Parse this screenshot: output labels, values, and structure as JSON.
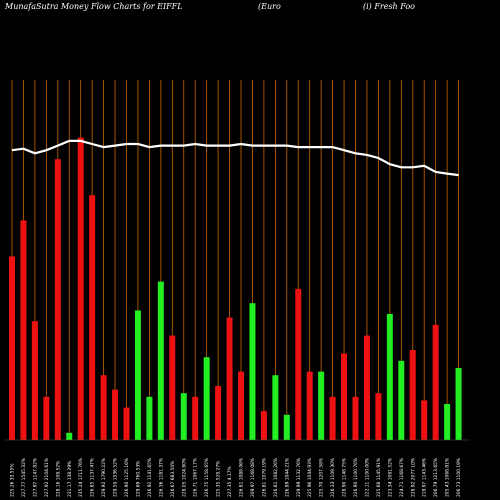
{
  "header": {
    "brand": "MunafaSutra  Money Flow  Charts for EIFFL",
    "company_part1": "(Euro",
    "company_part2": "(i) Fresh Foo"
  },
  "chart_data": {
    "type": "bar",
    "title": "MunafaSutra  Money Flow  Charts for EIFFL",
    "categories": [
      "225.26 33.55%",
      "227.77 1545.32%",
      "227.97 1147.82%",
      "227.92 2104.61%",
      "228.16 108.52%",
      "231.17 138.29%",
      "235.24 1711.76%",
      "226.85 1137.47%",
      "229.92 1790.22%",
      "229.50 1536.52%",
      "226.90 1125.16%",
      "229.69 760.53%",
      "226.92 1141.65%",
      "226.36 1181.37%",
      "226.67 683.50%",
      "228.05 1024.80%",
      "226.71 1067.17%",
      "226.75 1158.65%",
      "225.35 528.27%",
      "227.35 4.17%",
      "226.81 1088.06%",
      "209.97 1168.08%",
      "226.81 1079.19%",
      "226.81 1082.26%",
      "226.89 1044.21%",
      "229.99 1132.76%",
      "225.96 1044.93%",
      "225.70 1207.58%",
      "226.33 1109.30%",
      "228.90 1148.75%",
      "226.90 1100.76%",
      "222.11 1100.00%",
      "225.68 1145.91%",
      "223.34 1081.52%",
      "224.71 1168.67%",
      "228.92 2077.10%",
      "219.97 1143.46%",
      "206.79 1213.65%",
      "205.43 1068.81%",
      "206.73 1100.19%"
    ],
    "series": [
      {
        "direction": [
          "down",
          "down",
          "down",
          "down",
          "down",
          "up",
          "down",
          "down",
          "down",
          "down",
          "down",
          "up",
          "up",
          "up",
          "down",
          "up",
          "down",
          "up",
          "down",
          "down",
          "down",
          "up",
          "down",
          "up",
          "up",
          "down",
          "down",
          "up",
          "down",
          "down",
          "down",
          "down",
          "down",
          "up",
          "up",
          "down",
          "down",
          "down",
          "up",
          "up"
        ],
        "values": [
          51,
          61,
          33,
          12,
          78,
          2,
          84,
          68,
          18,
          14,
          9,
          36,
          12,
          44,
          29,
          13,
          12,
          23,
          15,
          34,
          19,
          38,
          8,
          18,
          7,
          42,
          19,
          19,
          12,
          24,
          12,
          29,
          13,
          35,
          22,
          25,
          11,
          32,
          10,
          20
        ]
      }
    ],
    "price_line": [
      152,
      153,
      150,
      152,
      155,
      158,
      158,
      156,
      154,
      155,
      156,
      156,
      154,
      155,
      155,
      155,
      156,
      155,
      155,
      155,
      156,
      155,
      155,
      155,
      155,
      154,
      154,
      154,
      154,
      152,
      150,
      149,
      147,
      143,
      141,
      141,
      142,
      138,
      137,
      136
    ],
    "colors": {
      "up": "#22ee22",
      "down": "#ee1111",
      "price_line": "#ffffff",
      "grid": "#cc6600",
      "background": "#000000"
    },
    "ylim": [
      0,
      100
    ],
    "grid": "vertical"
  }
}
